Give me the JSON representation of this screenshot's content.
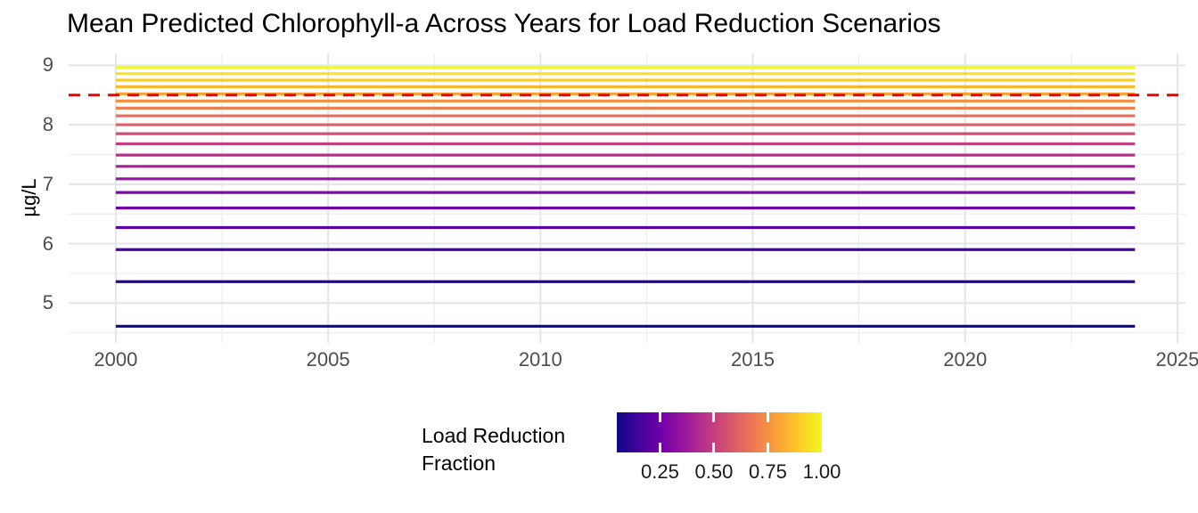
{
  "title": "Mean Predicted Chlorophyll-a Across Years for Load Reduction Scenarios",
  "y_axis": {
    "label": "µg/L",
    "tick_labels": [
      "9",
      "8",
      "7",
      "6",
      "5"
    ]
  },
  "x_axis": {
    "tick_labels": [
      "2000",
      "2005",
      "2010",
      "2015",
      "2020",
      "2025"
    ]
  },
  "legend": {
    "title_line1": "Load Reduction",
    "title_line2": "Fraction",
    "tick_labels": [
      "0.25",
      "0.50",
      "0.75",
      "1.00"
    ]
  },
  "colors": {
    "background": "#ffffff",
    "grid_major": "#e5e5e5",
    "grid_minor": "#efefef",
    "axis_text": "#4d4d4d",
    "threshold_red": "#ee0000"
  },
  "chart_data": {
    "type": "line",
    "title": "Mean Predicted Chlorophyll-a Across Years for Load Reduction Scenarios",
    "xlabel": "",
    "ylabel": "µg/L",
    "xlim": [
      1998.89,
      2025.19
    ],
    "ylim": [
      4.33,
      9.2
    ],
    "x_ticks": [
      2000,
      2005,
      2010,
      2015,
      2020,
      2025
    ],
    "x_minor_ticks": [
      2002.5,
      2007.5,
      2012.5,
      2017.5,
      2022.5
    ],
    "y_ticks": [
      5,
      6,
      7,
      8,
      9
    ],
    "y_minor_ticks": [
      4.5,
      5.5,
      6.5,
      7.5,
      8.5
    ],
    "grid": true,
    "x_data_range": [
      2000,
      2024
    ],
    "note": "Each series is a constant (flat) mean predicted chlorophyll-a value across years 2000-2024",
    "threshold_line": {
      "y": 8.5,
      "color": "#ee0000",
      "linetype": "dashed"
    },
    "series": [
      {
        "name": "0.05",
        "load_reduction_fraction": 0.05,
        "mean_chlorophyll_a": 4.61,
        "color": "#0d0887"
      },
      {
        "name": "0.10",
        "load_reduction_fraction": 0.1,
        "mean_chlorophyll_a": 5.36,
        "color": "#280692"
      },
      {
        "name": "0.15",
        "load_reduction_fraction": 0.15,
        "mean_chlorophyll_a": 5.9,
        "color": "#43039e"
      },
      {
        "name": "0.20",
        "load_reduction_fraction": 0.2,
        "mean_chlorophyll_a": 6.27,
        "color": "#5902a3"
      },
      {
        "name": "0.25",
        "load_reduction_fraction": 0.25,
        "mean_chlorophyll_a": 6.6,
        "color": "#6d01a7"
      },
      {
        "name": "0.30",
        "load_reduction_fraction": 0.3,
        "mean_chlorophyll_a": 6.86,
        "color": "#8109a4"
      },
      {
        "name": "0.35",
        "load_reduction_fraction": 0.35,
        "mean_chlorophyll_a": 7.09,
        "color": "#9513a0"
      },
      {
        "name": "0.40",
        "load_reduction_fraction": 0.4,
        "mean_chlorophyll_a": 7.3,
        "color": "#a62196"
      },
      {
        "name": "0.45",
        "load_reduction_fraction": 0.45,
        "mean_chlorophyll_a": 7.49,
        "color": "#b6308b"
      },
      {
        "name": "0.50",
        "load_reduction_fraction": 0.5,
        "mean_chlorophyll_a": 7.68,
        "color": "#c43f7f"
      },
      {
        "name": "0.55",
        "load_reduction_fraction": 0.55,
        "mean_chlorophyll_a": 7.85,
        "color": "#d14f72"
      },
      {
        "name": "0.60",
        "load_reduction_fraction": 0.6,
        "mean_chlorophyll_a": 8.0,
        "color": "#dc5e66"
      },
      {
        "name": "0.65",
        "load_reduction_fraction": 0.65,
        "mean_chlorophyll_a": 8.15,
        "color": "#e66e5b"
      },
      {
        "name": "0.70",
        "load_reduction_fraction": 0.7,
        "mean_chlorophyll_a": 8.28,
        "color": "#ef7f4f"
      },
      {
        "name": "0.75",
        "load_reduction_fraction": 0.75,
        "mean_chlorophyll_a": 8.4,
        "color": "#f69143"
      },
      {
        "name": "0.80",
        "load_reduction_fraction": 0.8,
        "mean_chlorophyll_a": 8.52,
        "color": "#fba438"
      },
      {
        "name": "0.85",
        "load_reduction_fraction": 0.85,
        "mean_chlorophyll_a": 8.64,
        "color": "#fcb82e"
      },
      {
        "name": "0.90",
        "load_reduction_fraction": 0.9,
        "mean_chlorophyll_a": 8.75,
        "color": "#fccc26"
      },
      {
        "name": "0.95",
        "load_reduction_fraction": 0.95,
        "mean_chlorophyll_a": 8.86,
        "color": "#f6e323"
      },
      {
        "name": "1.00",
        "load_reduction_fraction": 1.0,
        "mean_chlorophyll_a": 8.96,
        "color": "#f0f921"
      }
    ],
    "legend": {
      "title": "Load Reduction Fraction",
      "position": "bottom",
      "type": "colorbar",
      "colormap": "plasma",
      "domain": [
        0.05,
        1.0
      ],
      "tick_values": [
        0.25,
        0.5,
        0.75,
        1.0
      ],
      "tick_labels": [
        "0.25",
        "0.50",
        "0.75",
        "1.00"
      ],
      "colormap_stops": [
        "#0d0887",
        "#46039f",
        "#7201a8",
        "#9c179e",
        "#bd3786",
        "#d8576b",
        "#ed7953",
        "#fb9f3a",
        "#fdca26",
        "#f0f921"
      ]
    }
  }
}
